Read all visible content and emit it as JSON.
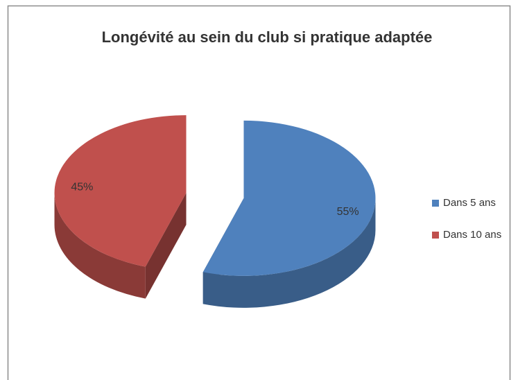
{
  "chart_data": {
    "type": "pie3d",
    "title": "Longévité au sein du club si pratique adaptée",
    "categories": [
      "Dans 5 ans",
      "Dans 10 ans"
    ],
    "values": [
      55,
      45
    ],
    "value_labels": [
      "55%",
      "45%"
    ],
    "colors": [
      "#4f81bd",
      "#c0504d"
    ],
    "legend": "right"
  }
}
